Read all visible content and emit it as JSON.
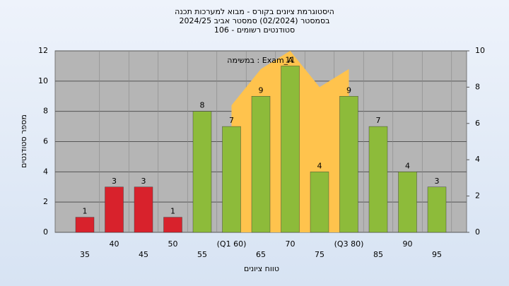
{
  "chart_data": {
    "type": "bar",
    "title": "היסטוגרמת ציונים בקורס - מבוא למערכות תכנה",
    "subtitle": [
      "בסמסטר  (02/2024)  סמסטר אביב 2024/25",
      "סטודנטים רשומים - 106"
    ],
    "annotation": "במשימה : Exam_A",
    "x_label": "טווח ציונים",
    "y_label": "מספר סטודנטים",
    "categories": [
      "35",
      "40",
      "45",
      "50",
      "55",
      "(Q1 60)",
      "65",
      "70",
      "75",
      "(Q3 80)",
      "85",
      "90",
      "95"
    ],
    "series": [
      {
        "name": "Exam_A",
        "axis": "y2",
        "type": "area",
        "color": "#ffc34d",
        "values": [
          null,
          null,
          null,
          null,
          null,
          7,
          9,
          10,
          8,
          9,
          null,
          null,
          null
        ]
      },
      {
        "values": [
          1,
          3,
          3,
          1,
          8,
          7,
          9,
          11,
          4,
          9,
          7,
          4,
          3
        ],
        "colors": [
          "#d8222c",
          "#d8222c",
          "#d8222c",
          "#d8222c",
          "#8dbb3a",
          "#8dbb3a",
          "#8dbb3a",
          "#8dbb3a",
          "#8dbb3a",
          "#8dbb3a",
          "#8dbb3a",
          "#8dbb3a",
          "#8dbb3a"
        ]
      }
    ],
    "ylim": [
      0,
      12
    ],
    "yticks": [
      0,
      2,
      4,
      6,
      8,
      10,
      12
    ],
    "y2lim": [
      0,
      10
    ],
    "y2ticks": [
      0,
      2,
      4,
      6,
      8,
      10
    ],
    "grid": true
  }
}
